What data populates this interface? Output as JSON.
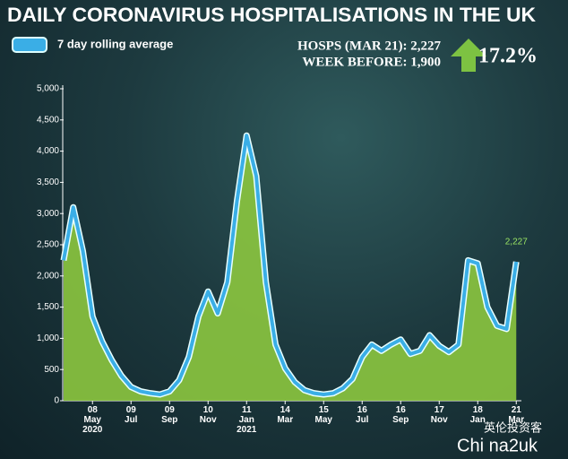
{
  "chart_data": {
    "type": "line",
    "title": "DAILY CORONAVIRUS HOSPITALISATIONS IN THE UK",
    "hosps_label": "HOSPS (MAR 21): 2,227",
    "week_before_label": "WEEK BEFORE: 1,900",
    "change": "17.2%",
    "watermark": [
      "英伦投资客",
      "Chi na2uk"
    ],
    "categories": [
      null,
      null,
      null,
      "08\nMay\n2020",
      null,
      null,
      null,
      "09\nJul",
      null,
      null,
      null,
      "09\nSep",
      null,
      null,
      null,
      "10\nNov",
      null,
      null,
      null,
      "11\nJan\n2021",
      null,
      null,
      null,
      "14\nMar",
      null,
      null,
      null,
      "15\nMay",
      null,
      null,
      null,
      "16\nJul",
      null,
      null,
      null,
      "16\nSep",
      null,
      null,
      null,
      "17\nNov",
      null,
      null,
      null,
      "18\nJan",
      null,
      null,
      null,
      "21\nMar"
    ],
    "series": [
      {
        "name": "7 day rolling average",
        "color": "#3aaee6",
        "area_color": "#8cc63f",
        "values": [
          2250,
          3100,
          2400,
          1350,
          950,
          650,
          400,
          220,
          150,
          120,
          100,
          150,
          330,
          700,
          1350,
          1750,
          1400,
          1900,
          3200,
          4250,
          3600,
          1900,
          900,
          520,
          300,
          170,
          120,
          100,
          120,
          200,
          350,
          700,
          900,
          800,
          900,
          980,
          750,
          800,
          1050,
          880,
          780,
          900,
          2250,
          2200,
          1500,
          1200,
          1150,
          2227
        ],
        "value_labels": [
          null,
          null,
          null,
          null,
          null,
          null,
          null,
          null,
          null,
          null,
          null,
          null,
          null,
          null,
          null,
          null,
          null,
          null,
          null,
          null,
          null,
          null,
          null,
          null,
          null,
          null,
          null,
          null,
          null,
          null,
          null,
          null,
          null,
          null,
          null,
          null,
          null,
          null,
          null,
          null,
          null,
          null,
          null,
          null,
          null,
          null,
          null,
          "2,227"
        ]
      }
    ],
    "ylim": [
      0,
      5000
    ],
    "yticks": [
      0,
      500,
      {
        "value": 1000,
        "label": "1,000"
      },
      {
        "value": 1500,
        "label": "1,500"
      },
      {
        "value": 2000,
        "label": "2,000"
      },
      {
        "value": 2500,
        "label": "2,500"
      },
      {
        "value": 3000,
        "label": "3,000"
      },
      {
        "value": 3500,
        "label": "3,500"
      },
      {
        "value": 4000,
        "label": "4,000"
      },
      {
        "value": 4500,
        "label": "4,500"
      },
      {
        "value": 5000,
        "label": "5,000"
      }
    ]
  }
}
